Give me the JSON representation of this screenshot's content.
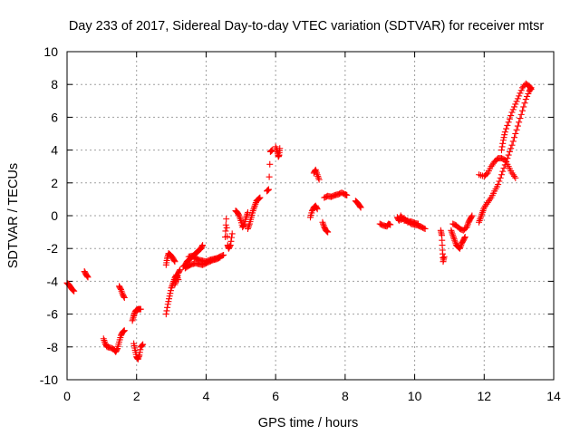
{
  "chart_data": {
    "type": "scatter",
    "title": "Day 233 of 2017, Sidereal Day-to-day VTEC variation (SDTVAR) for receiver mtsr",
    "xlabel": "GPS time / hours",
    "ylabel": "SDTVAR / TECUs",
    "xlim": [
      0,
      14
    ],
    "ylim": [
      -10,
      10
    ],
    "xticks": [
      0,
      2,
      4,
      6,
      8,
      10,
      12,
      14
    ],
    "xtick_labels": [
      "0",
      "2",
      "4",
      "6",
      "8",
      "10",
      "12",
      "14"
    ],
    "yticks": [
      -10,
      -8,
      -6,
      -4,
      -2,
      0,
      2,
      4,
      6,
      8,
      10
    ],
    "ytick_labels": [
      "-10",
      "-8",
      "-6",
      "-4",
      "-2",
      "0",
      "2",
      "4",
      "6",
      "8",
      "10"
    ],
    "grid": true,
    "marker": "plus",
    "color": "#ff0000",
    "segments": [
      [
        [
          0.0,
          -4.1
        ],
        [
          0.05,
          -4.2
        ],
        [
          0.1,
          -4.35
        ],
        [
          0.15,
          -4.5
        ],
        [
          0.2,
          -4.6
        ]
      ],
      [
        [
          0.5,
          -3.4
        ],
        [
          0.55,
          -3.6
        ],
        [
          0.6,
          -3.75
        ]
      ],
      [
        [
          1.05,
          -7.5
        ],
        [
          1.1,
          -7.8
        ],
        [
          1.15,
          -8.0
        ],
        [
          1.25,
          -8.05
        ],
        [
          1.35,
          -8.15
        ],
        [
          1.4,
          -8.3
        ],
        [
          1.45,
          -8.1
        ],
        [
          1.5,
          -7.7
        ],
        [
          1.55,
          -7.3
        ],
        [
          1.6,
          -7.1
        ],
        [
          1.65,
          -7.0
        ]
      ],
      [
        [
          1.5,
          -4.3
        ],
        [
          1.55,
          -4.5
        ],
        [
          1.6,
          -4.8
        ],
        [
          1.65,
          -5.0
        ]
      ],
      [
        [
          1.88,
          -6.4
        ],
        [
          1.92,
          -6.1
        ],
        [
          1.96,
          -5.85
        ],
        [
          2.0,
          -5.75
        ],
        [
          2.05,
          -5.7
        ],
        [
          2.12,
          -5.7
        ]
      ],
      [
        [
          1.92,
          -7.8
        ],
        [
          1.96,
          -8.2
        ],
        [
          2.0,
          -8.6
        ],
        [
          2.04,
          -8.75
        ],
        [
          2.08,
          -8.5
        ],
        [
          2.12,
          -8.0
        ],
        [
          2.18,
          -7.85
        ]
      ],
      [
        [
          2.85,
          -6.0
        ],
        [
          2.9,
          -5.4
        ],
        [
          2.95,
          -4.9
        ],
        [
          3.0,
          -4.4
        ],
        [
          3.05,
          -4.1
        ],
        [
          3.1,
          -3.8
        ],
        [
          3.15,
          -3.6
        ],
        [
          3.2,
          -3.9
        ]
      ],
      [
        [
          2.85,
          -3.0
        ],
        [
          2.88,
          -2.6
        ],
        [
          2.92,
          -2.3
        ],
        [
          2.98,
          -2.4
        ],
        [
          3.05,
          -2.6
        ],
        [
          3.1,
          -2.8
        ]
      ],
      [
        [
          3.1,
          -4.2
        ],
        [
          3.15,
          -3.9
        ],
        [
          3.2,
          -3.5
        ],
        [
          3.25,
          -3.3
        ]
      ],
      [
        [
          3.35,
          -3.1
        ],
        [
          3.4,
          -3.0
        ],
        [
          3.45,
          -2.8
        ],
        [
          3.5,
          -2.7
        ],
        [
          3.55,
          -2.6
        ],
        [
          3.6,
          -2.5
        ],
        [
          3.65,
          -2.4
        ],
        [
          3.7,
          -2.3
        ],
        [
          3.75,
          -2.2
        ],
        [
          3.8,
          -2.1
        ],
        [
          3.85,
          -2.0
        ],
        [
          3.9,
          -1.8
        ]
      ],
      [
        [
          3.4,
          -3.2
        ],
        [
          3.5,
          -3.05
        ],
        [
          3.6,
          -2.95
        ],
        [
          3.7,
          -2.9
        ],
        [
          3.8,
          -2.95
        ],
        [
          3.9,
          -3.0
        ],
        [
          4.0,
          -2.9
        ],
        [
          4.1,
          -2.8
        ],
        [
          4.2,
          -2.7
        ],
        [
          4.3,
          -2.65
        ],
        [
          4.4,
          -2.55
        ]
      ],
      [
        [
          3.5,
          -2.5
        ],
        [
          3.6,
          -2.45
        ],
        [
          3.7,
          -2.6
        ],
        [
          3.8,
          -2.7
        ],
        [
          3.9,
          -2.75
        ],
        [
          4.0,
          -2.8
        ],
        [
          4.1,
          -2.7
        ],
        [
          4.2,
          -2.65
        ],
        [
          4.3,
          -2.6
        ],
        [
          4.4,
          -2.5
        ],
        [
          4.5,
          -2.4
        ]
      ],
      [
        [
          4.55,
          -1.3
        ],
        [
          4.58,
          -0.2
        ],
        [
          4.62,
          -1.8
        ],
        [
          4.65,
          -2.0
        ],
        [
          4.7,
          -1.8
        ],
        [
          4.75,
          -1.1
        ]
      ],
      [
        [
          4.85,
          0.3
        ],
        [
          4.9,
          0.2
        ],
        [
          4.95,
          0.0
        ],
        [
          5.0,
          -0.3
        ],
        [
          5.05,
          -0.7
        ],
        [
          5.1,
          -0.5
        ],
        [
          5.15,
          -0.1
        ],
        [
          5.2,
          0.2
        ]
      ],
      [
        [
          5.2,
          -0.8
        ],
        [
          5.25,
          -0.5
        ],
        [
          5.3,
          -0.1
        ],
        [
          5.35,
          0.3
        ],
        [
          5.4,
          0.6
        ],
        [
          5.45,
          0.9
        ],
        [
          5.5,
          1.0
        ],
        [
          5.55,
          1.1
        ]
      ],
      [
        [
          5.75,
          1.5
        ],
        [
          5.8,
          1.6
        ],
        [
          5.85,
          3.9
        ],
        [
          5.9,
          4.0
        ]
      ],
      [
        [
          6.0,
          4.2
        ],
        [
          6.05,
          3.9
        ],
        [
          6.08,
          3.6
        ],
        [
          6.1,
          3.7
        ],
        [
          6.12,
          4.1
        ]
      ],
      [
        [
          7.0,
          -0.1
        ],
        [
          7.05,
          0.3
        ],
        [
          7.1,
          0.5
        ],
        [
          7.15,
          0.6
        ],
        [
          7.2,
          0.4
        ]
      ],
      [
        [
          7.1,
          2.6
        ],
        [
          7.15,
          2.8
        ],
        [
          7.2,
          2.5
        ],
        [
          7.25,
          2.2
        ]
      ],
      [
        [
          7.35,
          -0.4
        ],
        [
          7.4,
          -0.7
        ],
        [
          7.45,
          -0.9
        ],
        [
          7.5,
          -1.0
        ]
      ],
      [
        [
          7.4,
          1.1
        ],
        [
          7.5,
          1.2
        ],
        [
          7.6,
          1.15
        ],
        [
          7.7,
          1.25
        ],
        [
          7.8,
          1.3
        ],
        [
          7.9,
          1.4
        ],
        [
          8.0,
          1.3
        ],
        [
          8.05,
          1.25
        ]
      ],
      [
        [
          8.3,
          0.9
        ],
        [
          8.35,
          0.8
        ],
        [
          8.4,
          0.65
        ],
        [
          8.45,
          0.5
        ]
      ],
      [
        [
          9.0,
          -0.5
        ],
        [
          9.1,
          -0.6
        ],
        [
          9.2,
          -0.65
        ],
        [
          9.25,
          -0.5
        ],
        [
          9.3,
          -0.55
        ]
      ],
      [
        [
          9.5,
          -0.1
        ],
        [
          9.55,
          -0.3
        ],
        [
          9.6,
          0.0
        ],
        [
          9.7,
          -0.3
        ],
        [
          9.8,
          -0.3
        ],
        [
          9.9,
          -0.5
        ],
        [
          10.0,
          -0.55
        ],
        [
          10.1,
          -0.6
        ],
        [
          10.2,
          -0.7
        ],
        [
          10.3,
          -0.8
        ]
      ],
      [
        [
          9.6,
          -0.25
        ],
        [
          9.7,
          -0.15
        ],
        [
          9.8,
          -0.4
        ],
        [
          9.9,
          -0.35
        ],
        [
          10.0,
          -0.45
        ],
        [
          10.1,
          -0.5
        ]
      ],
      [
        [
          10.75,
          -0.9
        ],
        [
          10.78,
          -1.2
        ],
        [
          10.8,
          -2.1
        ],
        [
          10.82,
          -2.8
        ],
        [
          10.85,
          -2.5
        ]
      ],
      [
        [
          11.05,
          -0.9
        ],
        [
          11.1,
          -1.2
        ],
        [
          11.15,
          -1.5
        ],
        [
          11.2,
          -1.8
        ],
        [
          11.25,
          -1.9
        ],
        [
          11.3,
          -2.0
        ],
        [
          11.35,
          -1.7
        ],
        [
          11.4,
          -1.5
        ],
        [
          11.45,
          -1.3
        ]
      ],
      [
        [
          11.1,
          -0.5
        ],
        [
          11.2,
          -0.6
        ],
        [
          11.3,
          -0.8
        ],
        [
          11.4,
          -0.9
        ],
        [
          11.5,
          -0.7
        ],
        [
          11.55,
          -0.4
        ],
        [
          11.6,
          -0.2
        ],
        [
          11.65,
          0.0
        ]
      ],
      [
        [
          11.85,
          -0.4
        ],
        [
          11.9,
          -0.1
        ],
        [
          11.95,
          0.2
        ],
        [
          12.0,
          0.5
        ],
        [
          12.1,
          0.8
        ],
        [
          12.2,
          1.1
        ],
        [
          12.3,
          1.5
        ],
        [
          12.4,
          1.9
        ],
        [
          12.5,
          2.5
        ],
        [
          12.6,
          3.1
        ],
        [
          12.7,
          3.7
        ],
        [
          12.8,
          4.3
        ],
        [
          12.9,
          5.0
        ],
        [
          13.0,
          5.7
        ],
        [
          13.1,
          6.4
        ],
        [
          13.2,
          7.1
        ],
        [
          13.3,
          7.6
        ],
        [
          13.35,
          7.8
        ]
      ],
      [
        [
          11.85,
          2.5
        ],
        [
          12.0,
          2.4
        ],
        [
          12.1,
          2.6
        ],
        [
          12.2,
          3.0
        ],
        [
          12.3,
          3.3
        ],
        [
          12.4,
          3.5
        ],
        [
          12.5,
          3.5
        ],
        [
          12.6,
          3.4
        ],
        [
          12.7,
          3.0
        ],
        [
          12.8,
          2.6
        ],
        [
          12.9,
          2.3
        ]
      ],
      [
        [
          12.5,
          4.0
        ],
        [
          12.55,
          4.6
        ],
        [
          12.6,
          5.1
        ],
        [
          12.7,
          5.7
        ],
        [
          12.8,
          6.3
        ],
        [
          12.9,
          6.8
        ],
        [
          13.0,
          7.3
        ],
        [
          13.1,
          7.8
        ],
        [
          13.2,
          8.05
        ],
        [
          13.3,
          7.9
        ],
        [
          13.35,
          7.7
        ]
      ]
    ]
  }
}
